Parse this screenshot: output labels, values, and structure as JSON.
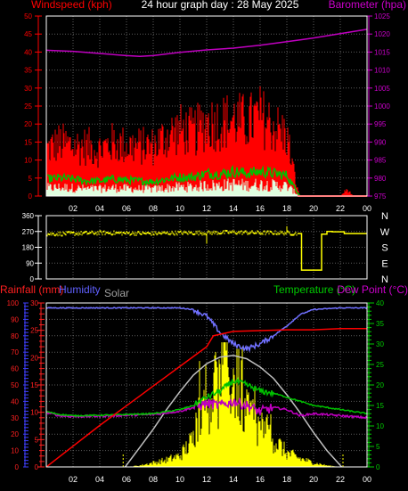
{
  "title": "24 hour graph day : 28 May 2025",
  "colors": {
    "background": "#000000",
    "plot_border": "#ffffff",
    "grid": "#5a5a5a",
    "wind_axis": "#ff0000",
    "baro_axis": "#cc00cc",
    "dir_axis": "#ffffff",
    "compass": "#ffffff",
    "rain_axis": "#4040ff",
    "humidity_axis": "#ff2020",
    "temp_axis": "#00cc00",
    "time_axis": "#ffffff",
    "barometer": "#c000c0",
    "wind_gust": "#ff0000",
    "wind_avg": "#00c000",
    "wind_fill": "#e0ffe0",
    "wind_dir": "#ffff00",
    "humidity": "#7070ff",
    "rainfall": "#ff0000",
    "solar": "#ffff00",
    "solar_max": "#c0c0c0",
    "temperature": "#00c000",
    "dew_point": "#c000c0",
    "title": "#ffffff",
    "solar_label": "#a0a0a0"
  },
  "chart_data": [
    {
      "type": "line",
      "name": "wind-barometer",
      "ylabel_left": "Windspeed (kph)",
      "ylabel_right": "Barometer (hpa)",
      "x_ticks": [
        "02",
        "04",
        "06",
        "08",
        "10",
        "12",
        "14",
        "16",
        "18",
        "20",
        "22",
        "00"
      ],
      "y_left_ticks": [
        0,
        5,
        10,
        15,
        20,
        25,
        30,
        35,
        40,
        45,
        50
      ],
      "y_left_range": [
        0,
        50
      ],
      "y_right_ticks": [
        975,
        980,
        985,
        990,
        995,
        1000,
        1005,
        1010,
        1015,
        1020,
        1025
      ],
      "y_right_range": [
        975,
        1025
      ],
      "grid": true,
      "series": [
        {
          "name": "Barometer",
          "axis": "right",
          "x_hours": [
            0,
            2,
            4,
            6,
            7,
            8,
            10,
            12,
            14,
            16,
            18,
            19,
            20,
            22,
            24
          ],
          "values": [
            1015.5,
            1015.2,
            1014.6,
            1014.0,
            1013.8,
            1014.0,
            1014.9,
            1015.6,
            1016.1,
            1016.9,
            1017.9,
            1018.4,
            1018.9,
            1020.1,
            1021.3
          ]
        },
        {
          "name": "Wind gust",
          "axis": "left",
          "x_hours": [
            0,
            1,
            2,
            3,
            4,
            5,
            6,
            7,
            8,
            9,
            10,
            11,
            12,
            13,
            14,
            15,
            16,
            17,
            18,
            18.8,
            19,
            20,
            21,
            22,
            22.5,
            23,
            24
          ],
          "values": [
            14,
            16,
            15,
            15,
            14,
            16,
            15,
            15,
            15,
            18,
            20,
            19,
            22,
            22,
            23,
            22,
            24,
            21,
            18,
            2,
            0,
            0,
            0,
            0,
            2,
            0,
            0
          ]
        },
        {
          "name": "Wind average",
          "axis": "left",
          "x_hours": [
            0,
            1,
            2,
            3,
            4,
            5,
            6,
            7,
            8,
            9,
            10,
            11,
            12,
            13,
            14,
            15,
            16,
            17,
            18,
            18.8,
            19,
            20,
            22,
            24
          ],
          "values": [
            4.5,
            4.8,
            4.5,
            4.0,
            4.0,
            4.5,
            4.2,
            4.0,
            3.8,
            4.5,
            5.0,
            5.0,
            6.0,
            5.8,
            6.5,
            6.0,
            6.5,
            6.0,
            5.5,
            1.0,
            0,
            0,
            0,
            0
          ]
        }
      ]
    },
    {
      "type": "scatter",
      "name": "wind-direction",
      "y_ticks": [
        0,
        90,
        180,
        270,
        360
      ],
      "y_range": [
        0,
        360
      ],
      "compass_labels": [
        "N",
        "W",
        "S",
        "E",
        "N"
      ],
      "series": [
        {
          "name": "Wind direction",
          "x_hours": [
            0,
            2,
            4,
            6,
            8,
            10,
            12,
            14,
            16,
            18,
            18.8,
            19.1,
            19.5,
            20.6,
            21,
            21.4,
            22,
            23,
            24
          ],
          "values": [
            255,
            258,
            262,
            260,
            258,
            262,
            262,
            265,
            262,
            262,
            258,
            50,
            50,
            50,
            255,
            270,
            268,
            258,
            258
          ]
        }
      ]
    },
    {
      "type": "line",
      "name": "rain-humidity-temp",
      "ylabel_rain": "Rainfall (mm)",
      "ylabel_humidity": "Humidity",
      "label_solar": "Solar",
      "ylabel_temp": "Temperature (°C)",
      "ylabel_dew": "Dew Point (°C)",
      "x_ticks": [
        "02",
        "04",
        "06",
        "08",
        "10",
        "12",
        "14",
        "16",
        "18",
        "20",
        "22",
        "00"
      ],
      "rain_ticks": [
        0,
        5,
        10,
        15,
        20,
        25,
        30
      ],
      "rain_range": [
        0,
        30
      ],
      "humidity_ticks": [
        0,
        10,
        20,
        30,
        40,
        50,
        60,
        70,
        80,
        90,
        100
      ],
      "humidity_range": [
        0,
        100
      ],
      "temp_ticks": [
        0,
        5,
        10,
        15,
        20,
        25,
        30,
        35,
        40
      ],
      "temp_range": [
        0,
        40
      ],
      "grid": true,
      "series": [
        {
          "name": "Humidity",
          "x_hours": [
            0,
            2,
            4,
            6,
            8,
            10,
            11,
            12,
            13,
            14,
            15,
            16,
            17,
            18,
            19,
            20,
            22,
            24
          ],
          "values": [
            97,
            97,
            97,
            97,
            97,
            97,
            96,
            92,
            82,
            75,
            72,
            75,
            80,
            86,
            93,
            96,
            97,
            97
          ]
        },
        {
          "name": "Rainfall",
          "x_hours": [
            0,
            1,
            2,
            3,
            4,
            5,
            6,
            7,
            8,
            9,
            10,
            11,
            12,
            12.5,
            14,
            18,
            20,
            22,
            24
          ],
          "values": [
            0,
            1.9,
            3.8,
            5.7,
            7.6,
            9.4,
            11.2,
            13.0,
            14.8,
            16.6,
            18.4,
            20.2,
            22.0,
            24.0,
            24.8,
            25.1,
            25.1,
            25.3,
            25.3
          ]
        },
        {
          "name": "Temperature",
          "x_hours": [
            0,
            1,
            2,
            4,
            6,
            8,
            10,
            11,
            12,
            13,
            14,
            15,
            16,
            17,
            18,
            19,
            20,
            22,
            24
          ],
          "values": [
            13.5,
            12.8,
            12.5,
            12.6,
            12.8,
            13.0,
            14.0,
            15.0,
            17.0,
            18.5,
            21.0,
            20.0,
            18.5,
            18.0,
            17.0,
            16.0,
            15.0,
            14.0,
            13.0
          ]
        },
        {
          "name": "Dew point",
          "x_hours": [
            0,
            1,
            2,
            4,
            6,
            8,
            10,
            11,
            12,
            13,
            14,
            15,
            16,
            17,
            18,
            19,
            20,
            22,
            24
          ],
          "values": [
            13.3,
            12.5,
            12.3,
            12.4,
            12.6,
            12.8,
            13.6,
            14.5,
            15.5,
            15.0,
            16.0,
            15.0,
            13.5,
            14.5,
            14.0,
            12.5,
            13.0,
            12.5,
            12.0
          ]
        },
        {
          "name": "Solar maximum",
          "x_hours": [
            5.9,
            7,
            8,
            9,
            10,
            11,
            12,
            13,
            14,
            15,
            16,
            17,
            18,
            19,
            20,
            21,
            22,
            22.1
          ],
          "values": [
            0,
            12,
            23,
            35,
            46,
            56,
            63,
            67,
            68,
            66,
            61,
            54,
            44,
            33,
            21,
            10,
            1,
            0
          ]
        },
        {
          "name": "Solar",
          "x_hours": [
            6,
            7,
            8,
            9,
            10,
            11,
            11.5,
            12,
            12.5,
            13,
            13.5,
            14,
            14.5,
            15,
            15.5,
            16,
            16.5,
            17,
            18,
            19,
            20,
            21,
            22
          ],
          "values": [
            0,
            1,
            3,
            5,
            8,
            20,
            45,
            40,
            60,
            52,
            70,
            62,
            55,
            40,
            35,
            28,
            25,
            20,
            10,
            6,
            3,
            1,
            0
          ]
        }
      ]
    }
  ]
}
